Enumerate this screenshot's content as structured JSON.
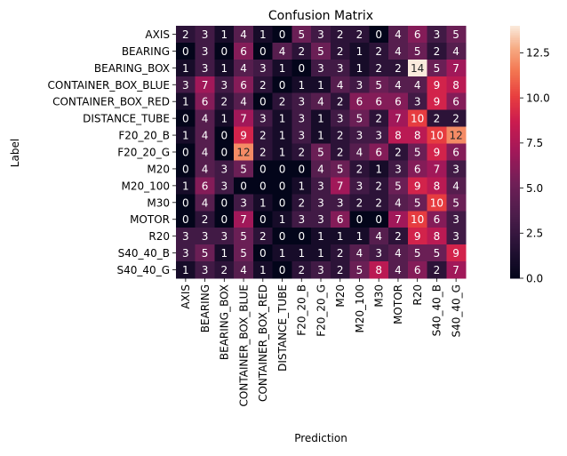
{
  "chart_data": {
    "type": "heatmap",
    "title": "Confusion Matrix",
    "xlabel": "Prediction",
    "ylabel": "Label",
    "x_categories": [
      "AXIS",
      "BEARING",
      "BEARING_BOX",
      "CONTAINER_BOX_BLUE",
      "CONTAINER_BOX_RED",
      "DISTANCE_TUBE",
      "F20_20_B",
      "F20_20_G",
      "M20",
      "M20_100",
      "M30",
      "MOTOR",
      "R20",
      "S40_40_B",
      "S40_40_G"
    ],
    "y_categories": [
      "AXIS",
      "BEARING",
      "BEARING_BOX",
      "CONTAINER_BOX_BLUE",
      "CONTAINER_BOX_RED",
      "DISTANCE_TUBE",
      "F20_20_B",
      "F20_20_G",
      "M20",
      "M20_100",
      "M30",
      "MOTOR",
      "R20",
      "S40_40_B",
      "S40_40_G"
    ],
    "values": [
      [
        2,
        3,
        1,
        4,
        1,
        0,
        5,
        3,
        2,
        2,
        0,
        4,
        6,
        3,
        5
      ],
      [
        0,
        3,
        0,
        6,
        0,
        4,
        2,
        5,
        2,
        1,
        2,
        4,
        5,
        2,
        4
      ],
      [
        1,
        3,
        1,
        4,
        3,
        1,
        0,
        3,
        3,
        1,
        2,
        2,
        14,
        5,
        7
      ],
      [
        3,
        7,
        3,
        6,
        2,
        0,
        1,
        1,
        4,
        3,
        5,
        4,
        4,
        9,
        8
      ],
      [
        1,
        6,
        2,
        4,
        0,
        2,
        3,
        4,
        2,
        6,
        6,
        6,
        3,
        9,
        6
      ],
      [
        0,
        4,
        1,
        7,
        3,
        1,
        3,
        1,
        3,
        5,
        2,
        7,
        10,
        2,
        2
      ],
      [
        1,
        4,
        0,
        9,
        2,
        1,
        3,
        1,
        2,
        3,
        3,
        8,
        8,
        10,
        12
      ],
      [
        0,
        4,
        0,
        12,
        2,
        1,
        2,
        5,
        2,
        4,
        6,
        2,
        5,
        9,
        6
      ],
      [
        0,
        4,
        3,
        5,
        0,
        0,
        0,
        4,
        5,
        2,
        1,
        3,
        6,
        7,
        3
      ],
      [
        1,
        6,
        3,
        0,
        0,
        0,
        1,
        3,
        7,
        3,
        2,
        5,
        9,
        8,
        4
      ],
      [
        0,
        4,
        0,
        3,
        1,
        0,
        2,
        3,
        3,
        2,
        2,
        4,
        5,
        10,
        5
      ],
      [
        0,
        2,
        0,
        7,
        0,
        1,
        3,
        3,
        6,
        0,
        0,
        7,
        10,
        6,
        3
      ],
      [
        3,
        3,
        3,
        5,
        2,
        0,
        0,
        1,
        1,
        1,
        4,
        2,
        9,
        8,
        3
      ],
      [
        3,
        5,
        1,
        5,
        0,
        1,
        1,
        1,
        2,
        4,
        3,
        4,
        5,
        5,
        9
      ],
      [
        1,
        3,
        2,
        4,
        1,
        0,
        2,
        3,
        2,
        5,
        8,
        4,
        6,
        2,
        7
      ]
    ],
    "colorbar": {
      "min": 0,
      "max": 14,
      "ticks": [
        "0.0",
        "2.5",
        "5.0",
        "7.5",
        "10.0",
        "12.5"
      ],
      "tick_values": [
        0,
        2.5,
        5,
        7.5,
        10,
        12.5
      ]
    },
    "colormap": "rocket",
    "grid": false
  }
}
